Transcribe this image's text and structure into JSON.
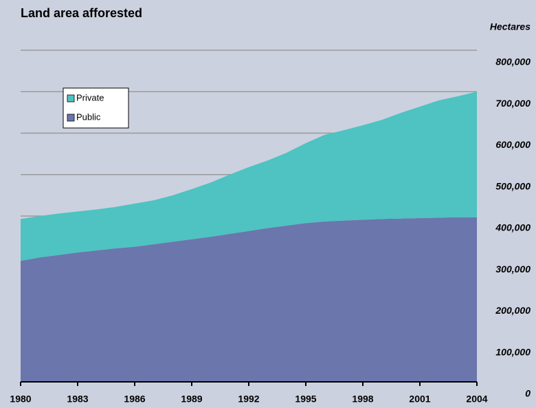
{
  "chart_data": {
    "type": "stacked_area",
    "title": "Land area afforested",
    "y_axis_label": "Hectares",
    "x": [
      1980,
      1981,
      1982,
      1983,
      1984,
      1985,
      1986,
      1987,
      1988,
      1989,
      1990,
      1991,
      1992,
      1993,
      1994,
      1995,
      1996,
      1997,
      1998,
      1999,
      2000,
      2001,
      2002,
      2003,
      2004
    ],
    "series": [
      {
        "name": "Public",
        "color": "#6b76ad",
        "values": [
          292000,
          300000,
          306000,
          312000,
          317000,
          322000,
          326000,
          332000,
          338000,
          344000,
          350000,
          357000,
          364000,
          371000,
          377000,
          383000,
          387000,
          389000,
          391000,
          393000,
          394000,
          395000,
          396000,
          397000,
          397000
        ]
      },
      {
        "name": "Private",
        "color": "#4ec3c1",
        "values": [
          101000,
          100000,
          100000,
          99000,
          99000,
          100000,
          104000,
          106000,
          112000,
          121000,
          131000,
          143000,
          154000,
          163000,
          176000,
          193000,
          209000,
          218000,
          228000,
          239000,
          255000,
          269000,
          283000,
          292000,
          303000
        ]
      }
    ],
    "xlim": [
      1980,
      2004
    ],
    "xticks": [
      1980,
      1983,
      1986,
      1989,
      1992,
      1995,
      1998,
      2001,
      2004
    ],
    "ylim": [
      0,
      800000
    ],
    "yticks": [
      0,
      {
        "value": 100000,
        "label": "100,000"
      },
      {
        "value": 200000,
        "label": "200,000"
      },
      {
        "value": 300000,
        "label": "300,000"
      },
      {
        "value": 400000,
        "label": "400,000"
      },
      {
        "value": 500000,
        "label": "500,000"
      },
      {
        "value": 600000,
        "label": "600,000"
      },
      {
        "value": 700000,
        "label": "700,000"
      },
      {
        "value": 800000,
        "label": "800,000"
      }
    ],
    "grid": true,
    "legend": "upper left"
  }
}
